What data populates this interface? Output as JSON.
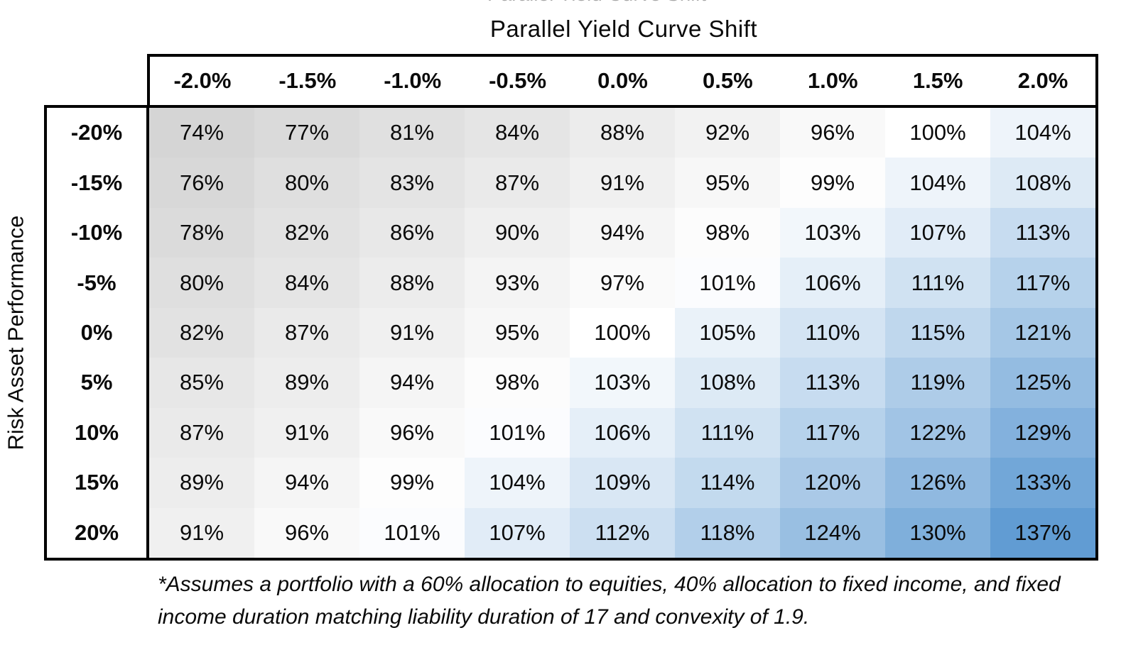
{
  "header": {
    "clipped_title_fragment": "Parallel Yield Curve Shift",
    "title": "Parallel Yield Curve Shift"
  },
  "chart_data": {
    "type": "heatmap",
    "title": "Parallel Yield Curve Shift",
    "xlabel": "Parallel Yield Curve Shift",
    "ylabel": "Risk Asset Performance",
    "columns": [
      "-2.0%",
      "-1.5%",
      "-1.0%",
      "-0.5%",
      "0.0%",
      "0.5%",
      "1.0%",
      "1.5%",
      "2.0%"
    ],
    "rows": [
      "-20%",
      "-15%",
      "-10%",
      "-5%",
      "0%",
      "5%",
      "10%",
      "15%",
      "20%"
    ],
    "values": [
      [
        74,
        77,
        81,
        84,
        88,
        92,
        96,
        100,
        104
      ],
      [
        76,
        80,
        83,
        87,
        91,
        95,
        99,
        104,
        108
      ],
      [
        78,
        82,
        86,
        90,
        94,
        98,
        103,
        107,
        113
      ],
      [
        80,
        84,
        88,
        93,
        97,
        101,
        106,
        111,
        117
      ],
      [
        82,
        87,
        91,
        95,
        100,
        105,
        110,
        115,
        121
      ],
      [
        85,
        89,
        94,
        98,
        103,
        108,
        113,
        119,
        125
      ],
      [
        87,
        91,
        96,
        101,
        106,
        111,
        117,
        122,
        129
      ],
      [
        89,
        94,
        99,
        104,
        109,
        114,
        120,
        126,
        133
      ],
      [
        91,
        96,
        101,
        107,
        112,
        118,
        124,
        130,
        137
      ]
    ],
    "value_format": "percent",
    "color_scale": {
      "low_color": "#D5D5D5",
      "mid_color": "#FFFFFF",
      "high_color": "#619CD3",
      "domain": [
        74,
        100,
        137
      ]
    },
    "legend": "none",
    "grid": "off"
  },
  "footnote": {
    "line1": "*Assumes a portfolio with a 60% allocation to equities, 40% allocation to fixed income, and fixed",
    "line2": "income duration matching liability duration of 17 and convexity of 1.9."
  }
}
